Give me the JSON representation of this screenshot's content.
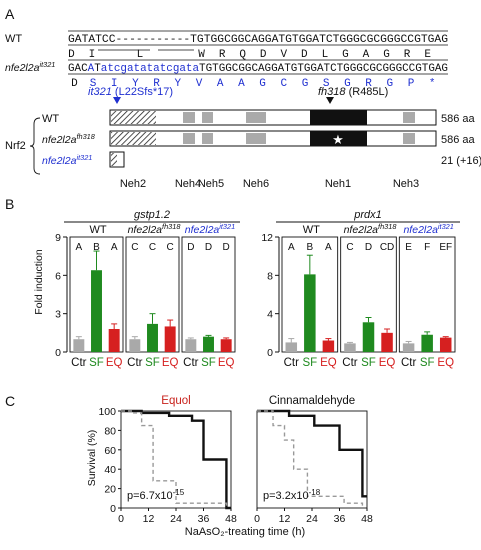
{
  "panels": {
    "a": "A",
    "b": "B",
    "c": "C"
  },
  "sequence": {
    "wt_label": "WT",
    "mut_label": "nfe2l2a",
    "mut_sup": "it321",
    "wt_dna": "GATATCC-----------TGTGGCGGCAGGATGTGGATCTGGGCGCGGGCCGTGAG",
    "wt_aa": [
      "D",
      "I",
      "L",
      "W",
      "R",
      "Q",
      "D",
      "V",
      "D",
      "L",
      "G",
      "A",
      "G",
      "R",
      "E"
    ],
    "mut_dna_black_1": "GAC",
    "mut_dna_blue_1": "A",
    "mut_dna_black_2": "T",
    "mut_dna_blue_2": "atcgatatatcgata",
    "mut_dna_black_3": "TGTGGCGGCAGGATGTGGATCTGGGCGCGGGCCGTGAG",
    "mut_aa_black": [
      "D"
    ],
    "mut_aa_blue": [
      "S",
      "I",
      "Y",
      "R",
      "Y",
      "V",
      "A",
      "A",
      "G",
      "C",
      "G",
      "S",
      "G",
      "R",
      "G",
      "P",
      "*"
    ]
  },
  "domains": {
    "protein": "Nrf2",
    "mutation_it321": "it321",
    "mutation_it321_detail": "(L22Sfs*17)",
    "mutation_fh318": "fh318",
    "mutation_fh318_detail": "(R485L)",
    "rows": [
      {
        "label": "WT",
        "sup": "",
        "length": "586 aa"
      },
      {
        "label": "nfe2l2a",
        "sup": "fh318",
        "length": "586 aa"
      },
      {
        "label": "nfe2l2a",
        "sup": "it321",
        "length": "21 (+16) aa"
      }
    ],
    "neh_labels": [
      "Neh2",
      "Neh4",
      "Neh5",
      "Neh6",
      "Neh1",
      "Neh3"
    ]
  },
  "genes": [
    "gstp1.2",
    "prdx1"
  ],
  "ylabel": "Fold induction",
  "treatments": [
    "Ctr",
    "SF",
    "EQ"
  ],
  "colors": {
    "ctr": "#a9a9a9",
    "sf": "#1f8a1f",
    "eq": "#d62020",
    "mutant": "#1f2fd0",
    "equol": "#c8221c"
  },
  "chart_data": [
    {
      "type": "bar",
      "gene": "gstp1.2",
      "ylim": [
        0,
        9
      ],
      "yticks": [
        0,
        3,
        6,
        9
      ],
      "groups": [
        {
          "label": "WT",
          "sup": "",
          "ctr": 1.0,
          "sf": 6.4,
          "eq": 1.8,
          "err": [
            0.2,
            1.5,
            0.4
          ],
          "letters": [
            "A",
            "B",
            "A"
          ]
        },
        {
          "label": "nfe2l2a",
          "sup": "fh318",
          "ctr": 1.0,
          "sf": 2.2,
          "eq": 2.0,
          "err": [
            0.2,
            0.8,
            0.5
          ],
          "letters": [
            "C",
            "C",
            "C"
          ]
        },
        {
          "label": "nfe2l2a",
          "sup": "it321",
          "ctr": 1.0,
          "sf": 1.2,
          "eq": 1.0,
          "err": [
            0.1,
            0.1,
            0.1
          ],
          "letters": [
            "D",
            "D",
            "D"
          ]
        }
      ]
    },
    {
      "type": "bar",
      "gene": "prdx1",
      "ylim": [
        0,
        12
      ],
      "yticks": [
        0,
        4,
        8,
        12
      ],
      "groups": [
        {
          "label": "WT",
          "sup": "",
          "ctr": 1.0,
          "sf": 8.1,
          "eq": 1.2,
          "err": [
            0.4,
            2.0,
            0.2
          ],
          "letters": [
            "A",
            "B",
            "A"
          ]
        },
        {
          "label": "nfe2l2a",
          "sup": "fh318",
          "ctr": 0.9,
          "sf": 3.1,
          "eq": 2.0,
          "err": [
            0.1,
            0.5,
            0.4
          ],
          "letters": [
            "C",
            "D",
            "CD"
          ]
        },
        {
          "label": "nfe2l2a",
          "sup": "it321",
          "ctr": 0.9,
          "sf": 1.8,
          "eq": 1.5,
          "err": [
            0.2,
            0.3,
            0.1
          ],
          "letters": [
            "E",
            "F",
            "EF"
          ]
        }
      ]
    },
    {
      "type": "line",
      "title": "Equol",
      "pvalue": "p=6.7x10",
      "pexp": "-15",
      "xlabel": "NaAsO₂-treating time (h)",
      "ylabel": "Survival (%)",
      "xticks": [
        0,
        12,
        24,
        36,
        48
      ],
      "yticks": [
        0,
        20,
        40,
        60,
        80,
        100
      ],
      "xlim": [
        0,
        48
      ],
      "ylim": [
        0,
        100
      ],
      "series": [
        {
          "style": "solid",
          "x": [
            0,
            9,
            9,
            21,
            21,
            31,
            31,
            36,
            36,
            46,
            46,
            48
          ],
          "y": [
            100,
            100,
            98,
            98,
            95,
            95,
            90,
            90,
            50,
            50,
            0,
            0
          ]
        },
        {
          "style": "dashed",
          "x": [
            0,
            5,
            5,
            9,
            9,
            14,
            14,
            24,
            24,
            30,
            30,
            46,
            46
          ],
          "y": [
            100,
            100,
            98,
            98,
            85,
            85,
            28,
            28,
            5,
            5,
            5,
            5,
            0
          ]
        }
      ]
    },
    {
      "type": "line",
      "title": "Cinnamaldehyde",
      "pvalue": "p=3.2x10",
      "pexp": "-18",
      "xticks": [
        0,
        12,
        24,
        36,
        48
      ],
      "xlim": [
        0,
        48
      ],
      "ylim": [
        0,
        100
      ],
      "series": [
        {
          "style": "solid",
          "x": [
            0,
            14,
            14,
            25,
            25,
            36,
            36,
            46,
            46,
            48
          ],
          "y": [
            100,
            100,
            95,
            95,
            85,
            85,
            60,
            60,
            12,
            12
          ]
        },
        {
          "style": "dashed",
          "x": [
            0,
            7,
            7,
            12,
            12,
            16,
            16,
            22,
            22,
            38,
            38,
            46,
            46
          ],
          "y": [
            100,
            100,
            85,
            85,
            70,
            70,
            40,
            40,
            12,
            12,
            5,
            5,
            0
          ]
        }
      ]
    }
  ]
}
